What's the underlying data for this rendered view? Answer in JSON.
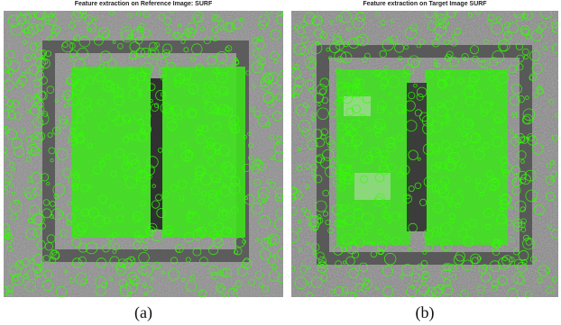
{
  "figure": {
    "panels": [
      {
        "title": "Feature extraction on Reference Image: SURF",
        "caption": "(a)"
      },
      {
        "title": "Feature extraction on Target Image SURF",
        "caption": "(b)"
      }
    ]
  },
  "colors": {
    "background": "#ffffff",
    "terrain_dark": "#5a5a5a",
    "terrain_light": "#b8b8b8",
    "feature_marker": "#33ff00"
  }
}
